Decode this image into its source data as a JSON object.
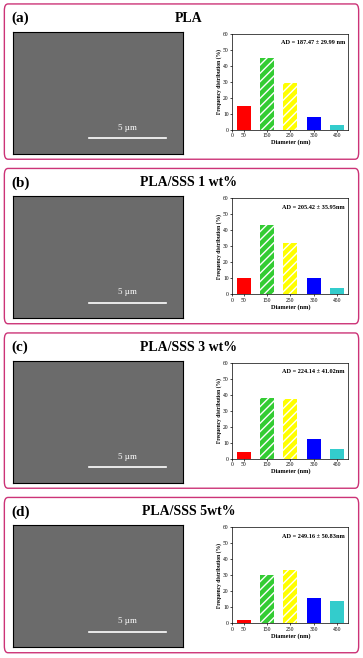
{
  "chart_data": [
    {
      "type": "bar",
      "panel_label": "(a)",
      "title": "PLA",
      "scale_bar": "5 µm",
      "annotations": [
        "AD = 187.47 ± 29.99 nm"
      ],
      "x": [
        50,
        150,
        250,
        350,
        450
      ],
      "values": [
        15,
        45,
        29,
        8,
        3
      ],
      "colors": [
        "#ff0000",
        "#33cc33",
        "#ffff00",
        "#0000ff",
        "#33cccc"
      ],
      "x_label": "Diameter (nm)",
      "y_label": "Frequency distribution (%)",
      "xlim": [
        0,
        500
      ],
      "xticks": [
        0,
        50,
        150,
        250,
        350,
        450
      ],
      "ylim": [
        0,
        60
      ],
      "yticks": [
        0,
        10,
        20,
        30,
        40,
        50,
        60
      ]
    },
    {
      "type": "bar",
      "panel_label": "(b)",
      "title": "PLA/SSS 1 wt%",
      "scale_bar": "5 µm",
      "annotations": [
        "AD = 205.42 ± 35.95nm"
      ],
      "x": [
        50,
        150,
        250,
        350,
        450
      ],
      "values": [
        10,
        43,
        32,
        10,
        4
      ],
      "colors": [
        "#ff0000",
        "#33cc33",
        "#ffff00",
        "#0000ff",
        "#33cccc"
      ],
      "x_label": "Diameter (nm)",
      "y_label": "Frequency distribution (%)",
      "xlim": [
        0,
        500
      ],
      "xticks": [
        0,
        50,
        150,
        250,
        350,
        450
      ],
      "ylim": [
        0,
        60
      ],
      "yticks": [
        0,
        10,
        20,
        30,
        40,
        50,
        60
      ]
    },
    {
      "type": "bar",
      "panel_label": "(c)",
      "title": "PLA/SSS 3 wt%",
      "scale_bar": "5 µm",
      "annotations": [
        "AD = 224.14 ± 41.02nm"
      ],
      "x": [
        50,
        150,
        250,
        350,
        450
      ],
      "values": [
        4,
        38,
        37,
        12,
        6
      ],
      "colors": [
        "#ff0000",
        "#33cc33",
        "#ffff00",
        "#0000ff",
        "#33cccc"
      ],
      "x_label": "Diameter (nm)",
      "y_label": "Frequency distribution (%)",
      "xlim": [
        0,
        500
      ],
      "xticks": [
        0,
        50,
        150,
        250,
        350,
        450
      ],
      "ylim": [
        0,
        60
      ],
      "yticks": [
        0,
        10,
        20,
        30,
        40,
        50,
        60
      ]
    },
    {
      "type": "bar",
      "panel_label": "(d)",
      "title": "PLA/SSS 5wt%",
      "scale_bar": "5 µm",
      "annotations": [
        "AD = 249.16 ± 50.83nm"
      ],
      "x": [
        50,
        150,
        250,
        350,
        450
      ],
      "values": [
        2,
        30,
        33,
        16,
        14
      ],
      "colors": [
        "#ff0000",
        "#33cc33",
        "#ffff00",
        "#0000ff",
        "#33cccc"
      ],
      "x_label": "Diameter (nm)",
      "y_label": "Frequency distribution (%)",
      "xlim": [
        0,
        500
      ],
      "xticks": [
        0,
        50,
        150,
        250,
        350,
        450
      ],
      "ylim": [
        0,
        60
      ],
      "yticks": [
        0,
        10,
        20,
        30,
        40,
        50,
        60
      ]
    }
  ]
}
